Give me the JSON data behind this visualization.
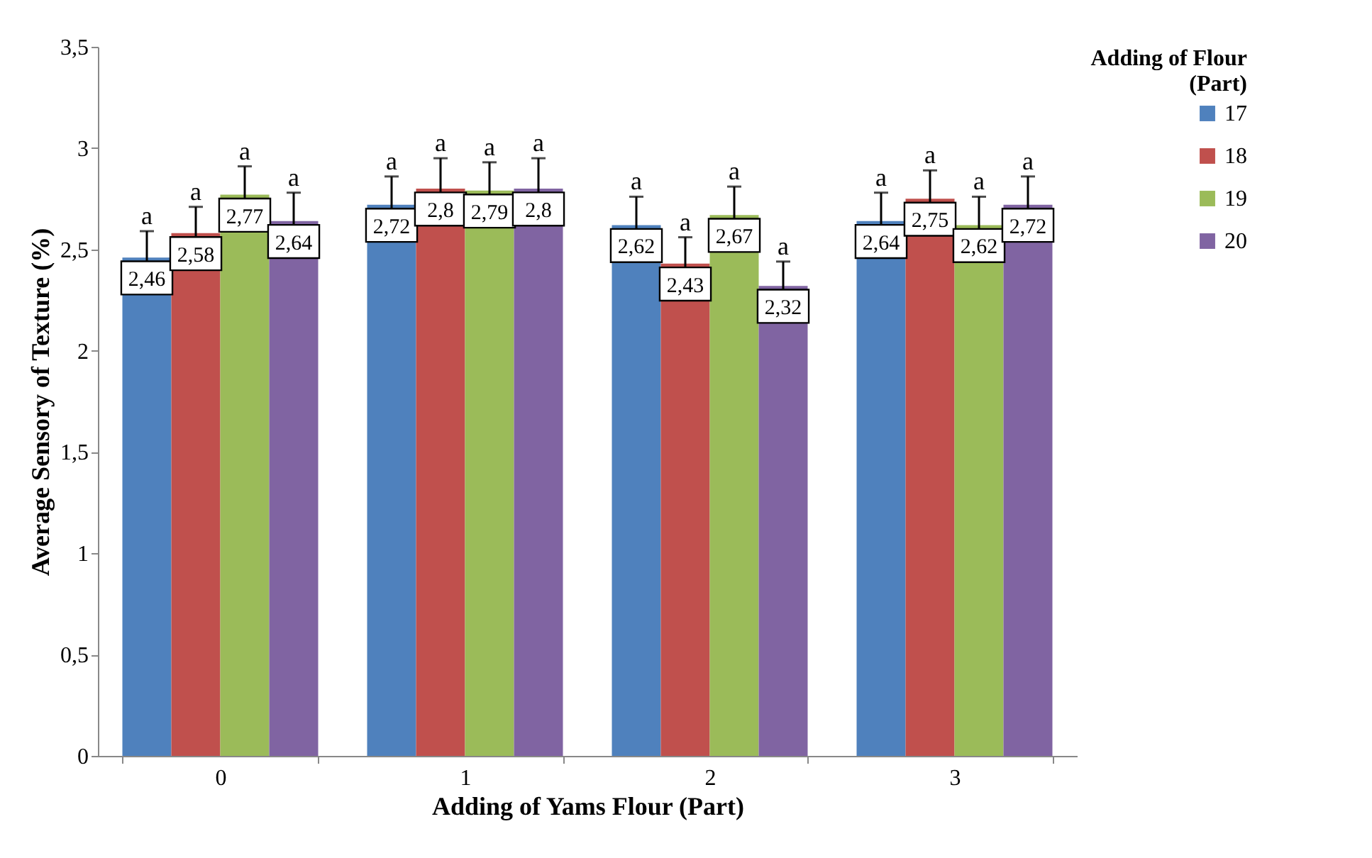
{
  "chart_data": {
    "type": "bar",
    "xlabel": "Adding of Yams Flour (Part)",
    "ylabel": "Average Sensory of  Texture (%)",
    "legend_title": "Adding of Flour (Part)",
    "categories": [
      "0",
      "1",
      "2",
      "3"
    ],
    "series": [
      {
        "name": "17",
        "color": "#4f81bd",
        "values": [
          2.46,
          2.72,
          2.62,
          2.64
        ],
        "errors": [
          0.13,
          0.14,
          0.14,
          0.14
        ],
        "value_labels": [
          "2,46",
          "2,72",
          "2,62",
          "2,64"
        ]
      },
      {
        "name": "18",
        "color": "#c0504d",
        "values": [
          2.58,
          2.8,
          2.43,
          2.75
        ],
        "errors": [
          0.13,
          0.15,
          0.13,
          0.14
        ],
        "value_labels": [
          "2,58",
          "2,8",
          "2,43",
          "2,75"
        ]
      },
      {
        "name": "19",
        "color": "#9bbb59",
        "values": [
          2.77,
          2.79,
          2.67,
          2.62
        ],
        "errors": [
          0.14,
          0.14,
          0.14,
          0.14
        ],
        "value_labels": [
          "2,77",
          "2,79",
          "2,67",
          "2,62"
        ]
      },
      {
        "name": "20",
        "color": "#8064a2",
        "values": [
          2.64,
          2.8,
          2.32,
          2.72
        ],
        "errors": [
          0.14,
          0.15,
          0.12,
          0.14
        ],
        "value_labels": [
          "2,64",
          "2,8",
          "2,32",
          "2,72"
        ]
      }
    ],
    "annotations": [
      "a",
      "a",
      "a",
      "a",
      "a",
      "a",
      "a",
      "a",
      "a",
      "a",
      "a",
      "a",
      "a",
      "a",
      "a",
      "a"
    ],
    "ylim": [
      0,
      3.5
    ],
    "yticks": [
      0,
      {
        "value": 0.5,
        "label": "0,5"
      },
      1,
      {
        "value": 1.5,
        "label": "1,5"
      },
      2,
      {
        "value": 2.5,
        "label": "2,5"
      },
      3,
      {
        "value": 3.5,
        "label": "3,5"
      }
    ],
    "grid": false,
    "legend": "right"
  }
}
